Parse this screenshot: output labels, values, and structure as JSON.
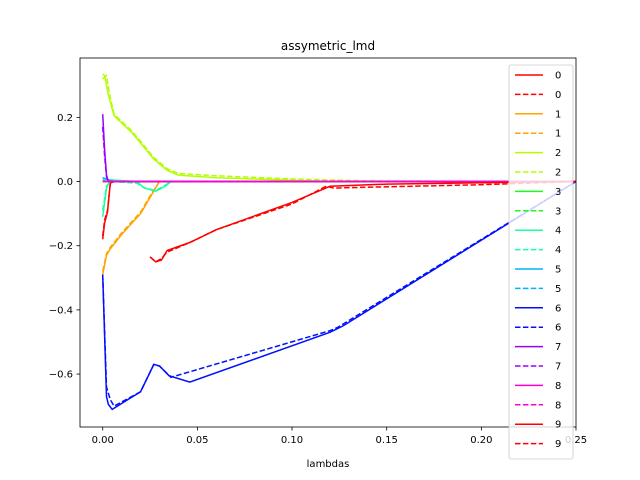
{
  "chart_data": {
    "type": "line",
    "title": "assymetric_lmd",
    "xlabel": "lambdas",
    "ylabel": "",
    "xlim": [
      -0.012,
      0.25
    ],
    "ylim": [
      -0.765,
      0.385
    ],
    "xticks": [
      0.0,
      0.05,
      0.1,
      0.15,
      0.2,
      0.25
    ],
    "xtick_labels": [
      "0.00",
      "0.05",
      "0.10",
      "0.15",
      "0.20",
      "0.25"
    ],
    "yticks": [
      -0.6,
      -0.4,
      -0.2,
      0.0,
      0.2
    ],
    "ytick_labels": [
      "−0.6",
      "−0.4",
      "−0.2",
      "0.0",
      "0.2"
    ],
    "grid": false,
    "legend_position": "right",
    "series": [
      {
        "name": "0",
        "color": "#ff0000",
        "dash": "solid",
        "x": [
          0.0,
          0.001,
          0.0025,
          0.004,
          0.006,
          0.25
        ],
        "y": [
          -0.18,
          -0.13,
          -0.095,
          -0.005,
          0.0,
          0.0
        ]
      },
      {
        "name": "0",
        "color": "#ff0000",
        "dash": "dashed",
        "x": [
          0.0,
          0.001,
          0.0025,
          0.004,
          0.006,
          0.25
        ],
        "y": [
          -0.17,
          -0.12,
          -0.09,
          -0.005,
          0.0,
          0.0
        ]
      },
      {
        "name": "1",
        "color": "#ffa500",
        "dash": "solid",
        "x": [
          0.0,
          0.002,
          0.004,
          0.01,
          0.02,
          0.026,
          0.03,
          0.035,
          0.25
        ],
        "y": [
          -0.29,
          -0.23,
          -0.21,
          -0.165,
          -0.1,
          -0.04,
          0.0,
          0.0,
          0.0
        ]
      },
      {
        "name": "1",
        "color": "#ffa500",
        "dash": "dashed",
        "x": [
          0.0,
          0.002,
          0.004,
          0.01,
          0.02,
          0.026,
          0.03,
          0.035,
          0.25
        ],
        "y": [
          -0.28,
          -0.225,
          -0.205,
          -0.16,
          -0.095,
          -0.035,
          0.0,
          0.0,
          0.0
        ]
      },
      {
        "name": "2",
        "color": "#b3ff00",
        "dash": "solid",
        "x": [
          0.0,
          0.001,
          0.003,
          0.006,
          0.015,
          0.02,
          0.027,
          0.034,
          0.04,
          0.06,
          0.1,
          0.12,
          0.25
        ],
        "y": [
          0.335,
          0.33,
          0.27,
          0.205,
          0.155,
          0.12,
          0.07,
          0.035,
          0.02,
          0.012,
          0.004,
          0.0,
          0.0
        ]
      },
      {
        "name": "2",
        "color": "#b3ff00",
        "dash": "dashed",
        "x": [
          0.0,
          0.002,
          0.004,
          0.006,
          0.015,
          0.02,
          0.027,
          0.034,
          0.04,
          0.06,
          0.1,
          0.14,
          0.25
        ],
        "y": [
          0.32,
          0.33,
          0.26,
          0.21,
          0.16,
          0.125,
          0.075,
          0.04,
          0.025,
          0.018,
          0.008,
          0.002,
          0.0
        ]
      },
      {
        "name": "3",
        "color": "#1aff1a",
        "dash": "solid",
        "x": [
          0.0,
          0.002,
          0.25
        ],
        "y": [
          0.005,
          0.0,
          0.0
        ]
      },
      {
        "name": "3",
        "color": "#1aff1a",
        "dash": "dashed",
        "x": [
          0.0,
          0.002,
          0.25
        ],
        "y": [
          0.004,
          0.0,
          0.0
        ]
      },
      {
        "name": "4",
        "color": "#1affa0",
        "dash": "solid",
        "x": [
          0.0,
          0.002,
          0.004,
          0.018,
          0.022,
          0.028,
          0.033,
          0.036,
          0.25
        ],
        "y": [
          -0.11,
          -0.02,
          0.005,
          0.0,
          -0.02,
          -0.03,
          -0.015,
          0.0,
          0.0
        ]
      },
      {
        "name": "4",
        "color": "#1affa0",
        "dash": "dashed",
        "x": [
          0.0,
          0.002,
          0.004,
          0.018,
          0.022,
          0.028,
          0.033,
          0.036,
          0.25
        ],
        "y": [
          -0.09,
          -0.015,
          0.0,
          -0.005,
          -0.02,
          -0.028,
          -0.012,
          0.0,
          0.0
        ]
      },
      {
        "name": "5",
        "color": "#00b3ff",
        "dash": "solid",
        "x": [
          0.0,
          0.003,
          0.006,
          0.25
        ],
        "y": [
          0.01,
          0.005,
          0.0,
          0.0
        ]
      },
      {
        "name": "5",
        "color": "#00b3ff",
        "dash": "dashed",
        "x": [
          0.0,
          0.003,
          0.006,
          0.25
        ],
        "y": [
          0.012,
          0.006,
          0.0,
          0.0
        ]
      },
      {
        "name": "6",
        "color": "#0010ff",
        "dash": "solid",
        "x": [
          0.0,
          0.002,
          0.003,
          0.005,
          0.02,
          0.027,
          0.03,
          0.035,
          0.046,
          0.12,
          0.127,
          0.25
        ],
        "y": [
          -0.29,
          -0.67,
          -0.695,
          -0.71,
          -0.655,
          -0.57,
          -0.575,
          -0.605,
          -0.625,
          -0.47,
          -0.45,
          0.0
        ]
      },
      {
        "name": "6",
        "color": "#0010ff",
        "dash": "dashed",
        "x": [
          0.0,
          0.002,
          0.004,
          0.006,
          0.02,
          0.027,
          0.03,
          0.036,
          0.12,
          0.124,
          0.25
        ],
        "y": [
          -0.29,
          -0.64,
          -0.68,
          -0.7,
          -0.655,
          -0.57,
          -0.575,
          -0.61,
          -0.465,
          -0.455,
          0.0
        ]
      },
      {
        "name": "7",
        "color": "#9900ff",
        "dash": "solid",
        "x": [
          0.0,
          0.001,
          0.002,
          0.003,
          0.25
        ],
        "y": [
          0.21,
          0.1,
          0.02,
          0.0,
          0.0
        ]
      },
      {
        "name": "7",
        "color": "#9900ff",
        "dash": "dashed",
        "x": [
          0.0,
          0.001,
          0.002,
          0.003,
          0.25
        ],
        "y": [
          0.17,
          0.08,
          0.015,
          0.0,
          0.0
        ]
      },
      {
        "name": "8",
        "color": "#ff00cc",
        "dash": "solid",
        "x": [
          0.0,
          0.003,
          0.25
        ],
        "y": [
          0.0,
          0.0,
          0.0
        ]
      },
      {
        "name": "8",
        "color": "#ff00cc",
        "dash": "dashed",
        "x": [
          0.0,
          0.003,
          0.25
        ],
        "y": [
          0.0,
          0.0,
          0.0
        ]
      },
      {
        "name": "9",
        "color": "#ff0000",
        "dash": "solid",
        "x": [
          0.025,
          0.028,
          0.031,
          0.034,
          0.046,
          0.06,
          0.1,
          0.12,
          0.15,
          0.25
        ],
        "y": [
          -0.235,
          -0.25,
          -0.245,
          -0.215,
          -0.19,
          -0.15,
          -0.065,
          -0.015,
          -0.008,
          0.0
        ]
      },
      {
        "name": "9",
        "color": "#ff0000",
        "dash": "dashed",
        "x": [
          0.025,
          0.028,
          0.031,
          0.034,
          0.046,
          0.06,
          0.1,
          0.118,
          0.122,
          0.2,
          0.25
        ],
        "y": [
          -0.235,
          -0.25,
          -0.24,
          -0.22,
          -0.19,
          -0.15,
          -0.07,
          -0.015,
          -0.02,
          -0.01,
          0.0
        ]
      }
    ]
  }
}
